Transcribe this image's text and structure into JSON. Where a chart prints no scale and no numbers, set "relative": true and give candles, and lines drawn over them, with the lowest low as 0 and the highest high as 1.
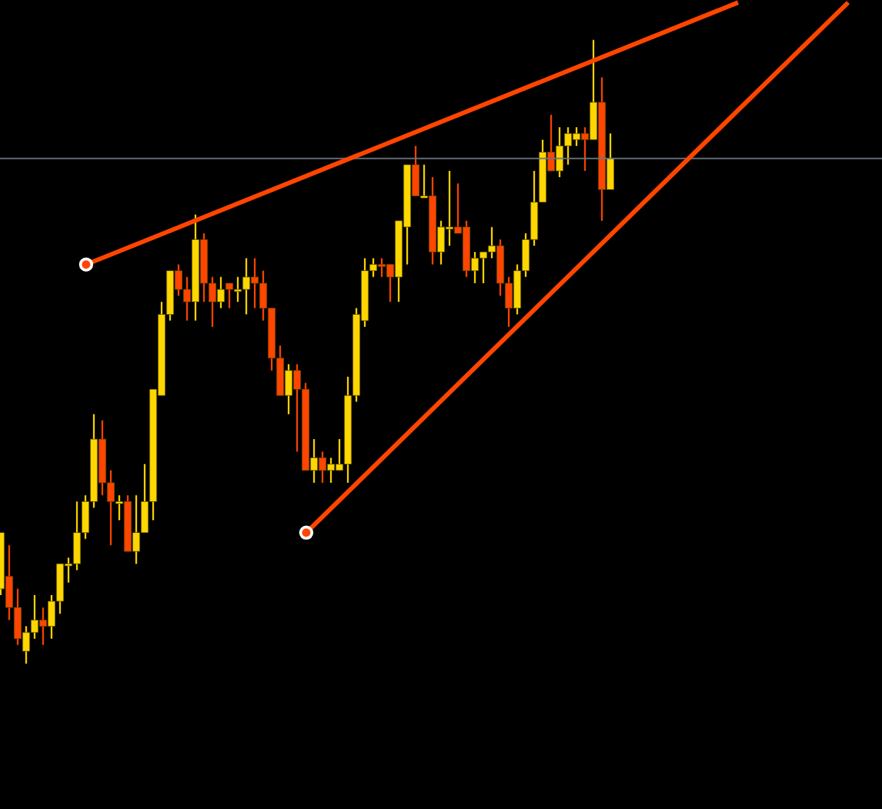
{
  "chart_data": {
    "type": "candlestick",
    "relative": true,
    "categories": [
      null,
      null,
      null,
      null,
      null,
      null,
      null,
      null,
      null,
      null,
      null,
      null,
      null,
      null,
      null,
      null,
      null,
      null,
      null,
      null,
      null,
      null,
      null,
      null,
      null,
      null,
      null,
      null,
      null,
      null,
      null,
      null,
      null,
      null,
      null,
      null,
      null,
      null,
      null,
      null,
      null,
      null,
      null,
      null,
      null,
      null,
      null,
      null,
      null,
      null,
      null,
      null,
      null,
      null,
      null,
      null,
      null,
      null,
      null,
      null,
      null,
      null,
      null,
      null,
      null,
      null,
      null,
      null,
      null,
      null,
      null,
      null,
      null,
      null,
      null,
      null,
      null,
      null,
      null,
      null,
      null,
      null,
      null,
      null,
      null,
      null,
      null,
      null,
      null,
      null,
      null,
      null,
      null,
      null,
      null,
      null,
      null,
      null,
      null,
      null,
      null
    ],
    "ohlc": [
      [
        0.12,
        0.21,
        0.11,
        0.21
      ],
      [
        0.14,
        0.19,
        0.07,
        0.09
      ],
      [
        0.09,
        0.12,
        0.03,
        0.04
      ],
      [
        0.02,
        0.06,
        0,
        0.05
      ],
      [
        0.05,
        0.11,
        0.04,
        0.07
      ],
      [
        0.07,
        0.09,
        0.03,
        0.06
      ],
      [
        0.06,
        0.11,
        0.04,
        0.1
      ],
      [
        0.1,
        0.16,
        0.08,
        0.16
      ],
      [
        0.16,
        0.17,
        0.13,
        0.16
      ],
      [
        0.16,
        0.26,
        0.15,
        0.21
      ],
      [
        0.21,
        0.27,
        0.2,
        0.26
      ],
      [
        0.26,
        0.4,
        0.25,
        0.36
      ],
      [
        0.36,
        0.39,
        0.27,
        0.29
      ],
      [
        0.29,
        0.31,
        0.19,
        0.26
      ],
      [
        0.26,
        0.27,
        0.23,
        0.26
      ],
      [
        0.26,
        0.27,
        0.18,
        0.18
      ],
      [
        0.18,
        0.27,
        0.16,
        0.21
      ],
      [
        0.21,
        0.32,
        0.21,
        0.26
      ],
      [
        0.26,
        0.44,
        0.23,
        0.44
      ],
      [
        0.43,
        0.58,
        0.43,
        0.56
      ],
      [
        0.56,
        0.63,
        0.55,
        0.63
      ],
      [
        0.63,
        0.64,
        0.59,
        0.6
      ],
      [
        0.6,
        0.62,
        0.55,
        0.58
      ],
      [
        0.58,
        0.72,
        0.55,
        0.68
      ],
      [
        0.68,
        0.69,
        0.58,
        0.61
      ],
      [
        0.61,
        0.62,
        0.54,
        0.58
      ],
      [
        0.58,
        0.62,
        0.57,
        0.6
      ],
      [
        0.61,
        0.61,
        0.57,
        0.6
      ],
      [
        0.6,
        0.62,
        0.58,
        0.6
      ],
      [
        0.6,
        0.65,
        0.56,
        0.62
      ],
      [
        0.62,
        0.65,
        0.57,
        0.61
      ],
      [
        0.61,
        0.63,
        0.55,
        0.57
      ],
      [
        0.57,
        0.57,
        0.47,
        0.49
      ],
      [
        0.49,
        0.51,
        0.43,
        0.43
      ],
      [
        0.43,
        0.48,
        0.4,
        0.47
      ],
      [
        0.47,
        0.48,
        0.34,
        0.44
      ],
      [
        0.44,
        0.45,
        0.31,
        0.31
      ],
      [
        0.31,
        0.36,
        0.29,
        0.33
      ],
      [
        0.33,
        0.34,
        0.29,
        0.31
      ],
      [
        0.31,
        0.33,
        0.29,
        0.32
      ],
      [
        0.31,
        0.36,
        0.31,
        0.32
      ],
      [
        0.32,
        0.46,
        0.29,
        0.43
      ],
      [
        0.43,
        0.57,
        0.42,
        0.56
      ],
      [
        0.55,
        0.65,
        0.54,
        0.63
      ],
      [
        0.63,
        0.65,
        0.62,
        0.64
      ],
      [
        0.64,
        0.65,
        0.62,
        0.64
      ],
      [
        0.64,
        0.64,
        0.58,
        0.62
      ],
      [
        0.62,
        0.71,
        0.58,
        0.71
      ],
      [
        0.7,
        0.8,
        0.64,
        0.8
      ],
      [
        0.8,
        0.83,
        0.75,
        0.75
      ],
      [
        0.75,
        0.8,
        0.75,
        0.75
      ],
      [
        0.75,
        0.78,
        0.64,
        0.66
      ],
      [
        0.66,
        0.71,
        0.64,
        0.7
      ],
      [
        0.7,
        0.79,
        0.67,
        0.7
      ],
      [
        0.7,
        0.77,
        0.69,
        0.69
      ],
      [
        0.7,
        0.71,
        0.62,
        0.63
      ],
      [
        0.63,
        0.66,
        0.61,
        0.65
      ],
      [
        0.65,
        0.66,
        0.61,
        0.66
      ],
      [
        0.66,
        0.7,
        0.65,
        0.67
      ],
      [
        0.67,
        0.68,
        0.59,
        0.61
      ],
      [
        0.61,
        0.62,
        0.54,
        0.57
      ],
      [
        0.57,
        0.64,
        0.56,
        0.63
      ],
      [
        0.63,
        0.69,
        0.62,
        0.68
      ],
      [
        0.68,
        0.79,
        0.67,
        0.74
      ],
      [
        0.74,
        0.84,
        0.74,
        0.82
      ],
      [
        0.82,
        0.88,
        0.79,
        0.79
      ],
      [
        0.79,
        0.86,
        0.78,
        0.83
      ],
      [
        0.83,
        0.86,
        0.8,
        0.85
      ],
      [
        0.84,
        0.86,
        0.83,
        0.85
      ],
      [
        0.85,
        0.86,
        0.79,
        0.84
      ],
      [
        0.84,
        1,
        0.84,
        0.9
      ],
      [
        0.9,
        0.94,
        0.71,
        0.76
      ],
      [
        0.76,
        0.85,
        0.76,
        0.81
      ],
      null,
      null,
      null,
      null,
      null,
      null,
      null,
      null,
      null,
      null,
      null,
      null,
      null,
      null,
      null,
      null,
      null,
      null,
      null,
      null,
      null,
      null,
      null,
      null,
      null,
      null,
      null,
      null
    ],
    "colors": [
      "#ffd700",
      "#ff4500",
      "#ff4500",
      "#ffd700",
      "#ffd700",
      "#ff4500",
      "#ffd700",
      "#ffd700",
      "#ffd700",
      "#ffd700",
      "#ffd700",
      "#ffd700",
      "#ff4500",
      "#ff4500",
      "#ffd700",
      "#ff4500",
      "#ffd700",
      "#ffd700",
      "#ffd700",
      "#ffd700",
      "#ffd700",
      "#ff4500",
      "#ff4500",
      "#ffd700",
      "#ff4500",
      "#ff4500",
      "#ffd700",
      "#ff4500",
      "#ffd700",
      "#ffd700",
      "#ff4500",
      "#ff4500",
      "#ff4500",
      "#ff4500",
      "#ffd700",
      "#ff4500",
      "#ff4500",
      "#ffd700",
      "#ff4500",
      "#ffd700",
      "#ffd700",
      "#ffd700",
      "#ffd700",
      "#ffd700",
      "#ffd700",
      "#ff4500",
      "#ff4500",
      "#ffd700",
      "#ffd700",
      "#ff4500",
      "#ffd700",
      "#ff4500",
      "#ffd700",
      "#ffd700",
      "#ff4500",
      "#ff4500",
      "#ffd700",
      "#ffd700",
      "#ffd700",
      "#ff4500",
      "#ff4500",
      "#ffd700",
      "#ffd700",
      "#ffd700",
      "#ffd700",
      "#ff4500",
      "#ffd700",
      "#ffd700",
      "#ffd700",
      "#ff4500",
      "#ffd700",
      "#ff4500",
      "#ffd700",
      null,
      null,
      null,
      null,
      null,
      null,
      null,
      null,
      null,
      null,
      null,
      null,
      null,
      null,
      null,
      null,
      null,
      null,
      null,
      null,
      null,
      null,
      null,
      null,
      null,
      null,
      null,
      null
    ],
    "series": [
      {
        "type": "line",
        "color": "#ff4500",
        "values": [
          null,
          null,
          null,
          null,
          null,
          null,
          null,
          null,
          null,
          null,
          0.64,
          null,
          null,
          null,
          null,
          null,
          null,
          null,
          null,
          null,
          null,
          null,
          null,
          null,
          null,
          null,
          null,
          null,
          null,
          null,
          null,
          null,
          null,
          null,
          null,
          null,
          null,
          null,
          null,
          null,
          null,
          null,
          null,
          null,
          null,
          null,
          null,
          null,
          null,
          null,
          null,
          null,
          null,
          null,
          null,
          null,
          null,
          null,
          null,
          null,
          null,
          null,
          null,
          null,
          null,
          null,
          null,
          null,
          null,
          null,
          null,
          null,
          null,
          null,
          null,
          null,
          null,
          null,
          null,
          null,
          null,
          null,
          null,
          null,
          null,
          null,
          null,
          1.06,
          null,
          null,
          null,
          null,
          null,
          null,
          null,
          null,
          null,
          null,
          null,
          null,
          null
        ]
      },
      {
        "type": "line",
        "color": "#ff4500",
        "values": [
          null,
          null,
          null,
          null,
          null,
          null,
          null,
          null,
          null,
          null,
          null,
          null,
          null,
          null,
          null,
          null,
          null,
          null,
          null,
          null,
          null,
          null,
          null,
          null,
          null,
          null,
          null,
          null,
          null,
          null,
          null,
          null,
          null,
          null,
          null,
          null,
          0.21,
          null,
          null,
          null,
          null,
          null,
          null,
          null,
          null,
          null,
          null,
          null,
          null,
          null,
          null,
          null,
          null,
          null,
          null,
          null,
          null,
          null,
          null,
          null,
          null,
          null,
          null,
          null,
          null,
          null,
          null,
          null,
          null,
          null,
          null,
          null,
          null,
          null,
          null,
          null,
          null,
          null,
          null,
          null,
          null,
          null,
          null,
          null,
          null,
          null,
          null,
          null,
          null,
          null,
          null,
          null,
          null,
          null,
          null,
          null,
          null,
          null,
          null,
          null,
          1.06
        ]
      }
    ],
    "ref_lines": [
      {
        "axis": "y",
        "value": 0.81,
        "color": "#6b7580"
      }
    ]
  }
}
